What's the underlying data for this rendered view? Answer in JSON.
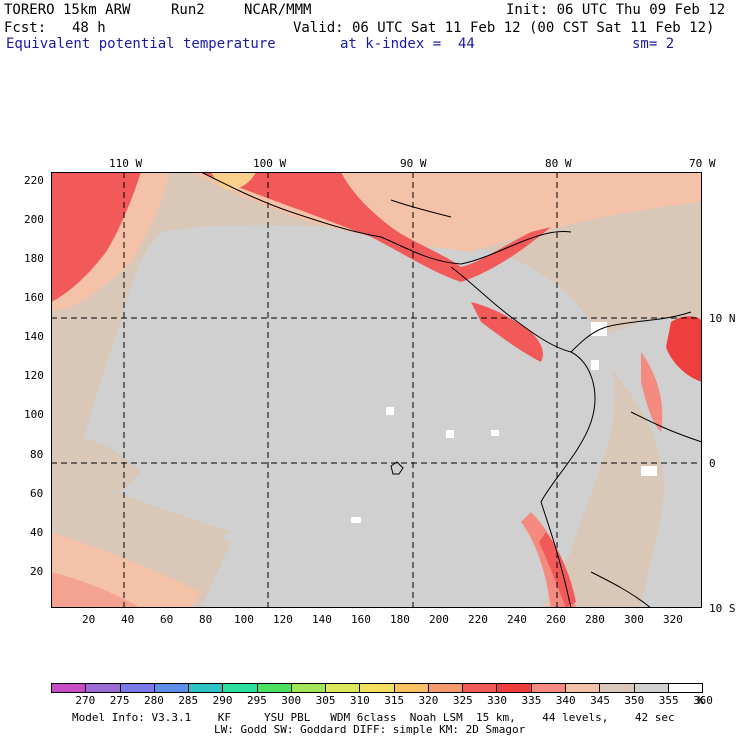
{
  "header": {
    "model": "TORERO",
    "resolution": "15km ARW",
    "run": "Run2",
    "org": "NCAR/MMM",
    "init": "Init: 06 UTC Thu 09 Feb 12",
    "fcst_label": "Fcst:",
    "fcst_value": "48 h",
    "valid": "Valid: 06 UTC Sat 11 Feb 12 (00 CST Sat 11 Feb 12)",
    "field": "Equivalent potential temperature",
    "level": "at k-index =  44",
    "smoothing": "sm= 2"
  },
  "map": {
    "top_lon_labels": [
      "110 W",
      "100 W",
      "90 W",
      "80 W",
      "70 W"
    ],
    "right_lat_labels": [
      "10 N",
      "0",
      "10 S"
    ],
    "y_ticks": [
      "220",
      "200",
      "180",
      "160",
      "140",
      "120",
      "100",
      "80",
      "60",
      "40",
      "20"
    ],
    "x_ticks": [
      "20",
      "40",
      "60",
      "80",
      "100",
      "120",
      "140",
      "160",
      "180",
      "200",
      "220",
      "240",
      "260",
      "280",
      "300",
      "320"
    ],
    "colors": {
      "grey_light": "#d0d0d0",
      "grey_tan": "#d9c7b8",
      "peach": "#f4c2a8",
      "salmon": "#f6a08a",
      "red": "#f25a5a",
      "red_deep": "#ee3e3e",
      "orange_pale": "#fbd08c",
      "white": "#ffffff"
    }
  },
  "colorbar": {
    "colors": [
      "#c64cc6",
      "#9a6bd4",
      "#7a7ae8",
      "#5a8ee8",
      "#2ec2c2",
      "#2ee0a0",
      "#4ee060",
      "#a0e85a",
      "#dce85a",
      "#f4e060",
      "#f8c060",
      "#f59a66",
      "#f25a5a",
      "#ee3e3e",
      "#f48a80",
      "#f4c2a8",
      "#d9c7b8",
      "#d0d0d0",
      "#ffffff"
    ],
    "labels": [
      "270",
      "275",
      "280",
      "285",
      "290",
      "295",
      "300",
      "305",
      "310",
      "315",
      "320",
      "325",
      "330",
      "335",
      "340",
      "345",
      "350",
      "355",
      "360",
      "K"
    ]
  },
  "footer": {
    "line1": "Model Info: V3.3.1    KF     YSU PBL   WDM 6class  Noah LSM  15 km,    44 levels,    42 sec",
    "line2": "LW: Godd SW: Goddard DIFF: simple KM: 2D Smagor"
  }
}
